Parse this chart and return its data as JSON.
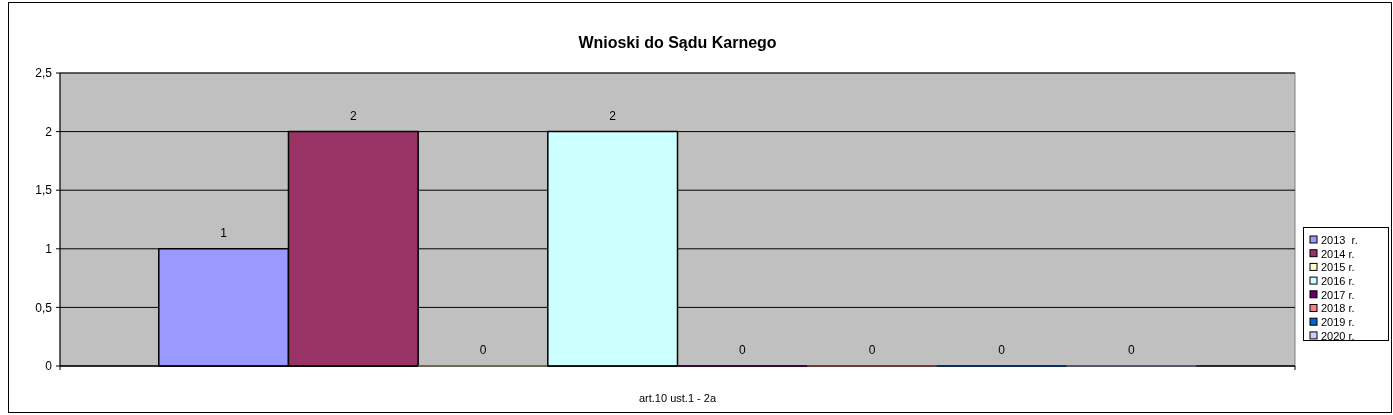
{
  "chart_data": {
    "type": "bar",
    "title": "Wnioski do Sądu Karnego",
    "categories": [
      "art.10 ust.1 - 2a"
    ],
    "series": [
      {
        "name": "2013  r.",
        "color": "#9999ff",
        "values": [
          1
        ]
      },
      {
        "name": "2014 r.",
        "color": "#993366",
        "values": [
          2
        ]
      },
      {
        "name": "2015 r.",
        "color": "#ffffcc",
        "values": [
          0
        ]
      },
      {
        "name": "2016 r.",
        "color": "#ccffff",
        "values": [
          2
        ]
      },
      {
        "name": "2017 r.",
        "color": "#660066",
        "values": [
          0
        ]
      },
      {
        "name": "2018 r.",
        "color": "#ff8080",
        "values": [
          0
        ]
      },
      {
        "name": "2019 r.",
        "color": "#0066cc",
        "values": [
          0
        ]
      },
      {
        "name": "2020 r.",
        "color": "#ccccff",
        "values": [
          0
        ]
      }
    ],
    "ylim": [
      0,
      2.5
    ],
    "yticks": [
      0,
      {
        "value": 0.5,
        "label": "0,5"
      },
      1,
      {
        "value": 1.5,
        "label": "1,5"
      },
      2,
      {
        "value": 2.5,
        "label": "2,5"
      }
    ],
    "grid": "y",
    "legend": "right",
    "data_labels": true
  }
}
